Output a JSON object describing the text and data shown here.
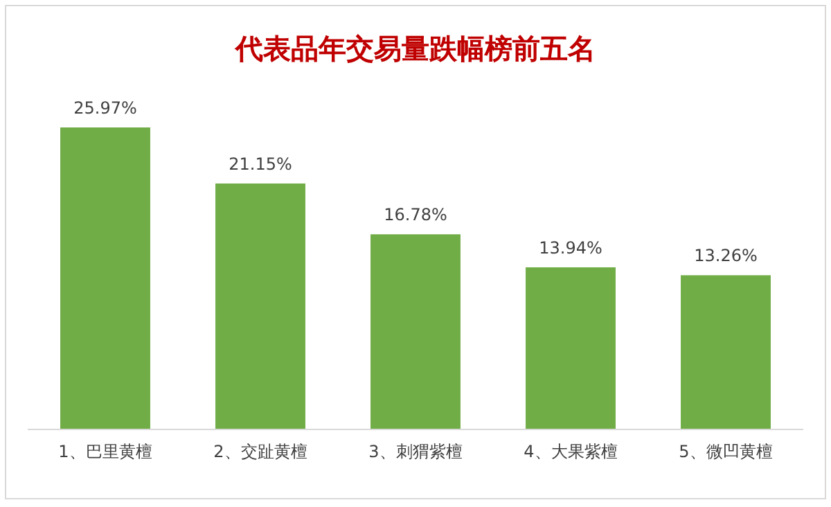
{
  "chart_data": {
    "type": "bar",
    "title": "代表品年交易量跌幅榜前五名",
    "categories": [
      "1、巴里黄檀",
      "2、交趾黄檀",
      "3、刺猬紫檀",
      "4、大果紫檀",
      "5、微凹黄檀"
    ],
    "values": [
      25.97,
      21.15,
      16.78,
      13.94,
      13.26
    ],
    "value_labels": [
      "25.97%",
      "21.15%",
      "16.78%",
      "13.94%",
      "13.26%"
    ],
    "color": "#70ad47"
  }
}
